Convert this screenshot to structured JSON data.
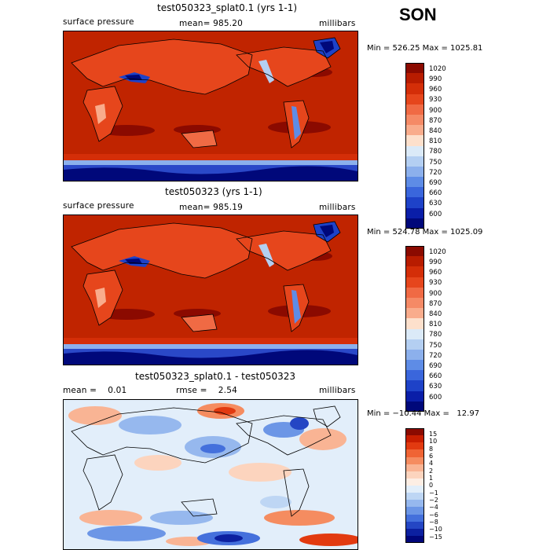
{
  "season": "SON",
  "panels": [
    {
      "title": "test050323_splat0.1 (yrs 1-1)",
      "left_label": "surface pressure",
      "center_label": "mean= 985.20",
      "right_label": "millibars",
      "minmax": "Min = 526.25 Max = 1025.81",
      "colorbar": {
        "labels": [
          "1020",
          "990",
          "960",
          "930",
          "900",
          "870",
          "840",
          "810",
          "780",
          "750",
          "720",
          "690",
          "660",
          "630",
          "600"
        ],
        "colors": [
          "#8b0a00",
          "#b81c00",
          "#d42e08",
          "#e6461c",
          "#f06a44",
          "#f58a66",
          "#f9ac8c",
          "#fde0cc",
          "#dbeaf8",
          "#b4cff2",
          "#8cb0ec",
          "#5e8ce6",
          "#3a66dc",
          "#1e42c8",
          "#0a1ea8",
          "#00087a"
        ]
      }
    },
    {
      "title": "test050323 (yrs 1-1)",
      "left_label": "surface pressure",
      "center_label": "mean= 985.19",
      "right_label": "millibars",
      "minmax": "Min = 524.78 Max = 1025.09",
      "colorbar": {
        "labels": [
          "1020",
          "990",
          "960",
          "930",
          "900",
          "870",
          "840",
          "810",
          "780",
          "750",
          "720",
          "690",
          "660",
          "630",
          "600"
        ],
        "colors": [
          "#8b0a00",
          "#b81c00",
          "#d42e08",
          "#e6461c",
          "#f06a44",
          "#f58a66",
          "#f9ac8c",
          "#fde0cc",
          "#dbeaf8",
          "#b4cff2",
          "#8cb0ec",
          "#5e8ce6",
          "#3a66dc",
          "#1e42c8",
          "#0a1ea8",
          "#00087a"
        ]
      }
    },
    {
      "title": "test050323_splat0.1 - test050323",
      "left_label": "mean =    0.01",
      "center_label": "rmse =    2.54",
      "right_label": "millibars",
      "minmax": "Min = −10.44 Max =   12.97",
      "colorbar": {
        "labels": [
          "15",
          "10",
          "8",
          "6",
          "4",
          "2",
          "1",
          "0",
          "−1",
          "−2",
          "−4",
          "−6",
          "−8",
          "−10",
          "−15"
        ],
        "colors": [
          "#8b0a00",
          "#c81e00",
          "#e23a10",
          "#f06434",
          "#f58c60",
          "#f9b494",
          "#fcd4be",
          "#fdeee4",
          "#e2eefa",
          "#bed6f4",
          "#96b8ee",
          "#6c96e6",
          "#4470dc",
          "#2446c4",
          "#0c20a0",
          "#00067a"
        ]
      }
    }
  ]
}
